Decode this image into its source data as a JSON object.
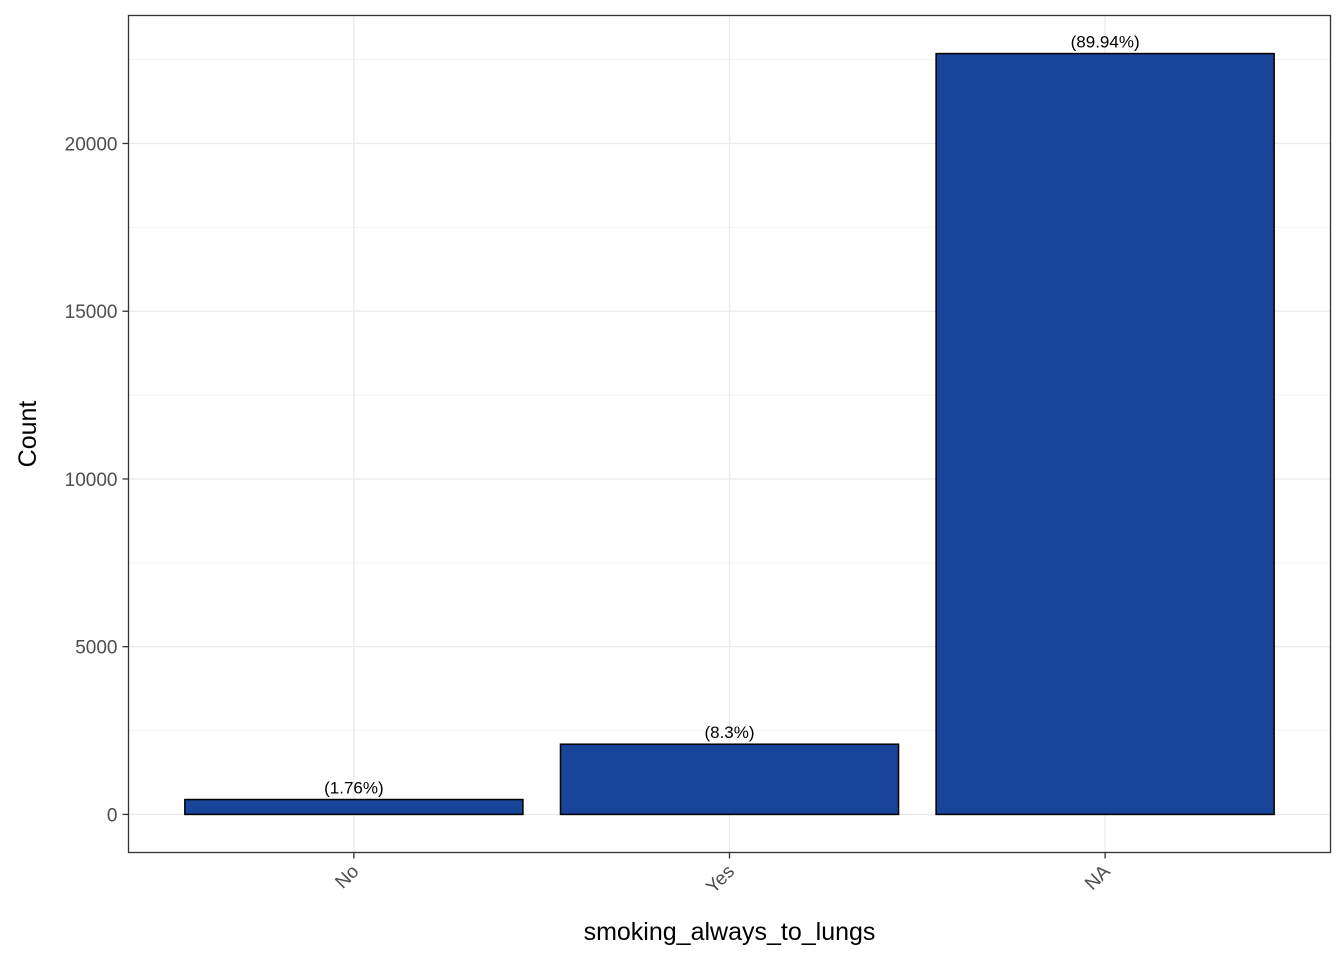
{
  "chart_data": {
    "type": "bar",
    "title": "",
    "xlabel": "smoking_always_to_lungs",
    "ylabel": "Count",
    "categories": [
      "No",
      "Yes",
      "NA"
    ],
    "values": [
      444,
      2093,
      22680
    ],
    "data_labels": [
      "(1.76%)",
      "(8.3%)",
      "(89.94%)"
    ],
    "ylim": [
      -1135,
      23815
    ],
    "y_ticks": [
      0,
      5000,
      10000,
      15000,
      20000
    ],
    "y_tick_labels": [
      "0",
      "5000",
      "10000",
      "15000",
      "20000"
    ],
    "x_tick_label_rotation": -45,
    "grid": true,
    "legend": "none",
    "colors": {
      "bar_fill": "#184499",
      "bar_outline": "#000000",
      "panel_border": "#333333",
      "grid_major": "#ebebeb",
      "grid_minor": "#f2f2f2"
    }
  }
}
